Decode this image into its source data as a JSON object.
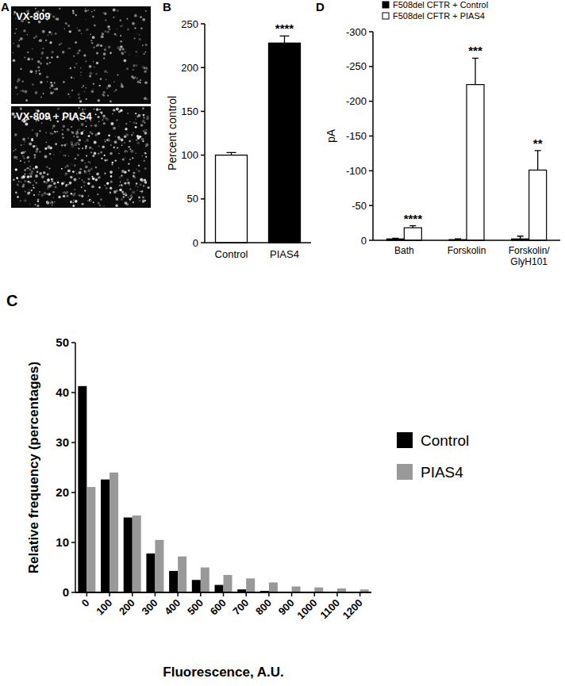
{
  "panel_labels": [
    "A",
    "B",
    "C",
    "D"
  ],
  "images": [
    {
      "label": "VX-809"
    },
    {
      "label": "VX-809 + PIAS4"
    }
  ],
  "chart_data": [
    {
      "type": "bar",
      "ylabel": "Percent control",
      "categories": [
        "Control",
        "PIAS4"
      ],
      "values": [
        100,
        228
      ],
      "errors": [
        3,
        8
      ],
      "colors": [
        "#ffffff",
        "#000000"
      ],
      "significance": [
        null,
        "****"
      ],
      "ylim": [
        0,
        250
      ],
      "yticks": [
        0,
        50,
        100,
        150,
        200,
        250
      ]
    },
    {
      "type": "bar",
      "xlabel": "Fluorescence, A.U.",
      "ylabel": "Relative frequency (percentages)",
      "categories": [
        "0",
        "100",
        "200",
        "300",
        "400",
        "500",
        "600",
        "700",
        "800",
        "900",
        "1000",
        "1100",
        "1200"
      ],
      "series": [
        {
          "name": "Control",
          "color": "#000000",
          "values": [
            41.3,
            22.6,
            15,
            7.8,
            4.3,
            2.5,
            1.5,
            0.6,
            0.3,
            0.1,
            0,
            0,
            0
          ]
        },
        {
          "name": "PIAS4",
          "color": "#999999",
          "values": [
            21.1,
            24,
            15.4,
            10.5,
            7.2,
            5,
            3.5,
            2.8,
            2,
            1.2,
            1,
            0.8,
            0.6
          ]
        }
      ],
      "ylim": [
        0,
        50
      ],
      "yticks": [
        0,
        10,
        20,
        30,
        40,
        50
      ],
      "legend": "right"
    },
    {
      "type": "bar",
      "ylabel": "pA",
      "categories": [
        "Bath",
        "Forskolin",
        "Forskolin/GlyH101"
      ],
      "series": [
        {
          "name": "F508del CFTR + Control",
          "color": "#000000",
          "values": [
            -2,
            -1,
            -2
          ],
          "errors": [
            1,
            1,
            4
          ]
        },
        {
          "name": "F508del CFTR + PIAS4",
          "color": "#ffffff",
          "values": [
            -18,
            -224,
            -101
          ],
          "errors": [
            3,
            38,
            28
          ],
          "significance": [
            "****",
            "***",
            "**"
          ]
        }
      ],
      "ylim": [
        0,
        -300
      ],
      "yticks": [
        0,
        -50,
        -100,
        -150,
        -200,
        -250,
        -300
      ],
      "legend": "top"
    }
  ]
}
